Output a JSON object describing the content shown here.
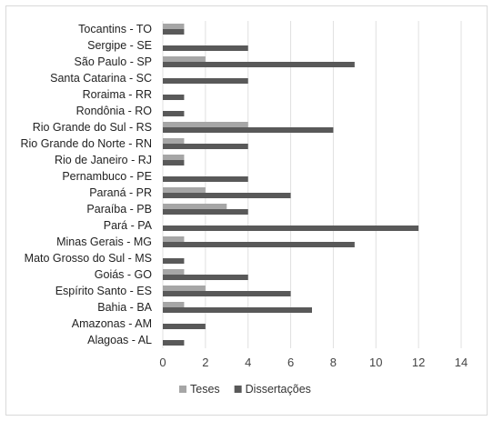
{
  "chart_data": {
    "type": "bar",
    "orientation": "horizontal",
    "title": "",
    "xlabel": "",
    "ylabel": "",
    "categories": [
      "Tocantins - TO",
      "Sergipe - SE",
      "São Paulo - SP",
      "Santa Catarina - SC",
      "Roraima - RR",
      "Rondônia - RO",
      "Rio Grande do Sul - RS",
      "Rio Grande do Norte - RN",
      "Rio de Janeiro - RJ",
      "Pernambuco - PE",
      "Paraná - PR",
      "Paraíba - PB",
      "Pará - PA",
      "Minas Gerais - MG",
      "Mato Grosso do Sul - MS",
      "Goiás - GO",
      "Espírito Santo - ES",
      "Bahia - BA",
      "Amazonas - AM",
      "Alagoas - AL"
    ],
    "series": [
      {
        "name": "Teses",
        "color": "#a6a6a6",
        "values": [
          1,
          0,
          2,
          0,
          0,
          0,
          4,
          1,
          1,
          0,
          2,
          3,
          0,
          1,
          0,
          1,
          2,
          1,
          0,
          0
        ]
      },
      {
        "name": "Dissertações",
        "color": "#595959",
        "values": [
          1,
          4,
          9,
          4,
          1,
          1,
          8,
          4,
          1,
          4,
          6,
          4,
          12,
          9,
          1,
          4,
          6,
          7,
          2,
          1
        ]
      }
    ],
    "xlim": [
      0,
      14
    ],
    "xticks": [
      0,
      2,
      4,
      6,
      8,
      10,
      12,
      14
    ],
    "grid": true,
    "legend_position": "bottom"
  }
}
